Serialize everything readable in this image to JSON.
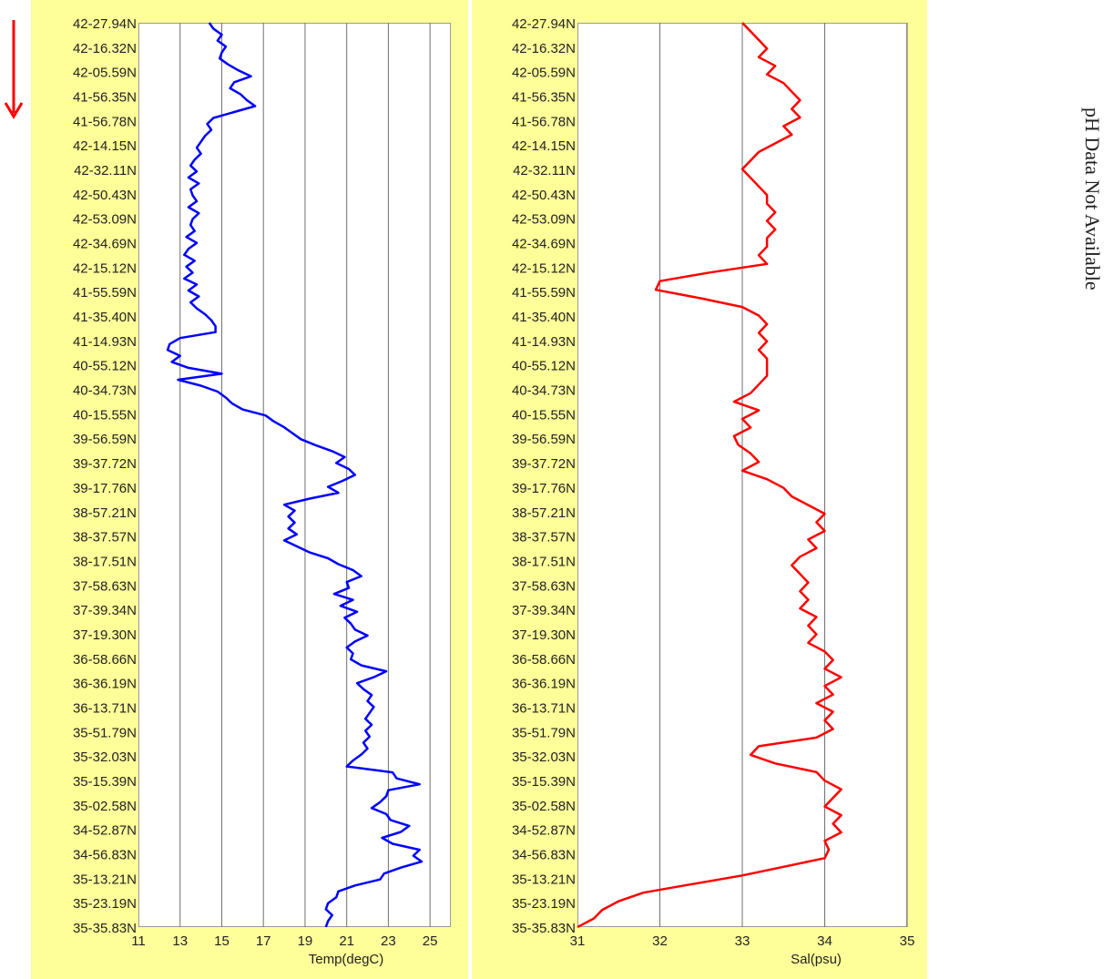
{
  "side_note": "pH Data Not Available",
  "direction_arrow": "arrow-down",
  "chart_data": [
    {
      "type": "line",
      "xlabel": "Temp(degC)",
      "ylabel": "",
      "xlim": [
        11,
        26
      ],
      "x_ticks": [
        11,
        13,
        15,
        17,
        19,
        21,
        23,
        25
      ],
      "y_tick_labels": [
        "42-27.94N",
        "42-16.32N",
        "42-05.59N",
        "41-56.35N",
        "41-56.78N",
        "42-14.15N",
        "42-32.11N",
        "42-50.43N",
        "42-53.09N",
        "42-34.69N",
        "42-15.12N",
        "41-55.59N",
        "41-35.40N",
        "41-14.93N",
        "40-55.12N",
        "40-34.73N",
        "40-15.55N",
        "39-56.59N",
        "39-37.72N",
        "39-17.76N",
        "38-57.21N",
        "38-37.57N",
        "38-17.51N",
        "37-58.63N",
        "37-39.34N",
        "37-19.30N",
        "36-58.66N",
        "36-36.19N",
        "36-13.71N",
        "35-51.79N",
        "35-32.03N",
        "35-15.39N",
        "35-02.58N",
        "34-52.87N",
        "34-56.83N",
        "35-13.21N",
        "35-23.19N",
        "35-35.83N"
      ],
      "grid": true,
      "color": "#0000ff",
      "series": [
        {
          "values": [
            14.4,
            14.6,
            15.0,
            14.8,
            15.2,
            15.0,
            14.9,
            15.3,
            15.8,
            16.4,
            15.6,
            15.4,
            15.9,
            16.2,
            16.6,
            15.6,
            14.6,
            14.3,
            14.5,
            14.2,
            14.0,
            13.8,
            14.0,
            13.7,
            13.5,
            13.8,
            13.4,
            13.9,
            13.5,
            13.6,
            13.8,
            13.4,
            13.9,
            13.6,
            13.5,
            13.7,
            13.3,
            13.8,
            13.4,
            13.2,
            13.7,
            13.3,
            13.6,
            13.2,
            13.8,
            13.4,
            13.9,
            13.5,
            13.8,
            14.2,
            14.5,
            14.7,
            14.7,
            13.0,
            12.5,
            12.4,
            13.0,
            12.6,
            13.4,
            15.0,
            12.9,
            14.0,
            14.8,
            15.2,
            15.5,
            16.0,
            17.1,
            17.5,
            18.0,
            18.4,
            18.8,
            19.5,
            20.3,
            20.9,
            20.5,
            21.1,
            21.4,
            20.8,
            20.1,
            20.6,
            19.2,
            18.0,
            18.5,
            18.2,
            18.5,
            18.2,
            18.6,
            18.0,
            18.6,
            19.2,
            20.1,
            20.6,
            21.3,
            21.7,
            21.0,
            21.1,
            20.4,
            21.3,
            20.7,
            21.5,
            20.9,
            21.2,
            21.4,
            22.0,
            21.4,
            21.0,
            21.3,
            21.2,
            21.7,
            22.9,
            22.3,
            21.5,
            21.8,
            22.2,
            22.0,
            22.3,
            22.1,
            21.9,
            22.2,
            21.9,
            22.1,
            21.8,
            22.0,
            21.7,
            21.3,
            21.0,
            23.2,
            23.4,
            24.5,
            23.0,
            22.9,
            22.6,
            22.2,
            22.9,
            23.1,
            24.0,
            23.6,
            22.7,
            23.2,
            24.5,
            24.2,
            24.6,
            23.6,
            22.8,
            22.6,
            21.4,
            20.6,
            20.5,
            20.1,
            20.0,
            20.3,
            20.1,
            20.0
          ]
        }
      ]
    },
    {
      "type": "line",
      "xlabel": "Sal(psu)",
      "ylabel": "",
      "xlim": [
        31,
        35
      ],
      "x_ticks": [
        31,
        32,
        33,
        34,
        35
      ],
      "y_tick_labels": [
        "42-27.94N",
        "42-16.32N",
        "42-05.59N",
        "41-56.35N",
        "41-56.78N",
        "42-14.15N",
        "42-32.11N",
        "42-50.43N",
        "42-53.09N",
        "42-34.69N",
        "42-15.12N",
        "41-55.59N",
        "41-35.40N",
        "41-14.93N",
        "40-55.12N",
        "40-34.73N",
        "40-15.55N",
        "39-56.59N",
        "39-37.72N",
        "39-17.76N",
        "38-57.21N",
        "38-37.57N",
        "38-17.51N",
        "37-58.63N",
        "37-39.34N",
        "37-19.30N",
        "36-58.66N",
        "36-36.19N",
        "36-13.71N",
        "35-51.79N",
        "35-32.03N",
        "35-15.39N",
        "35-02.58N",
        "34-52.87N",
        "34-56.83N",
        "35-13.21N",
        "35-23.19N",
        "35-35.83N"
      ],
      "grid": true,
      "color": "#ff0000",
      "series": [
        {
          "values": [
            33.0,
            33.1,
            33.2,
            33.3,
            33.2,
            33.4,
            33.3,
            33.5,
            33.6,
            33.7,
            33.6,
            33.7,
            33.5,
            33.6,
            33.4,
            33.2,
            33.1,
            33.0,
            33.1,
            33.2,
            33.3,
            33.3,
            33.4,
            33.3,
            33.4,
            33.3,
            33.3,
            33.2,
            33.3,
            32.6,
            32.0,
            31.95,
            32.5,
            33.0,
            33.2,
            33.3,
            33.2,
            33.3,
            33.2,
            33.3,
            33.3,
            33.3,
            33.2,
            33.1,
            32.9,
            33.2,
            33.0,
            33.1,
            32.9,
            32.95,
            33.1,
            33.2,
            33.0,
            33.3,
            33.5,
            33.6,
            33.8,
            34.0,
            33.9,
            34.0,
            33.8,
            33.9,
            33.7,
            33.6,
            33.7,
            33.8,
            33.7,
            33.8,
            33.7,
            33.9,
            33.8,
            33.9,
            33.8,
            34.0,
            34.1,
            34.0,
            34.2,
            34.0,
            34.1,
            33.9,
            34.1,
            34.0,
            34.1,
            33.9,
            33.2,
            33.1,
            33.4,
            33.9,
            34.0,
            34.2,
            34.1,
            34.0,
            34.2,
            34.1,
            34.2,
            34.0,
            34.05,
            34.0,
            33.5,
            33.0,
            32.4,
            31.8,
            31.5,
            31.3,
            31.2,
            31.0
          ]
        }
      ]
    }
  ]
}
